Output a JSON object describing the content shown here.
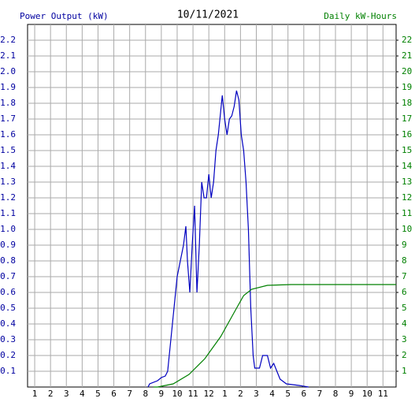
{
  "chart_data": {
    "type": "line",
    "title": "10/11/2021",
    "ylabel": "Power Output (kW)",
    "y2label": "Daily kW-Hours",
    "ylabel_color": "#0000a0",
    "y2label_color": "#008000",
    "xlim": [
      0.55,
      23.83
    ],
    "xticks": [
      {
        "value": 1,
        "label": "1"
      },
      {
        "value": 2,
        "label": "2"
      },
      {
        "value": 3,
        "label": "3"
      },
      {
        "value": 4,
        "label": "4"
      },
      {
        "value": 5,
        "label": "5"
      },
      {
        "value": 6,
        "label": "6"
      },
      {
        "value": 7,
        "label": "7"
      },
      {
        "value": 8,
        "label": "8"
      },
      {
        "value": 9,
        "label": "9"
      },
      {
        "value": 10,
        "label": "10"
      },
      {
        "value": 11,
        "label": "11"
      },
      {
        "value": 12,
        "label": "12"
      },
      {
        "value": 13,
        "label": "1"
      },
      {
        "value": 14,
        "label": "2"
      },
      {
        "value": 15,
        "label": "3"
      },
      {
        "value": 16,
        "label": "4"
      },
      {
        "value": 17,
        "label": "5"
      },
      {
        "value": 18,
        "label": "6"
      },
      {
        "value": 19,
        "label": "7"
      },
      {
        "value": 20,
        "label": "8"
      },
      {
        "value": 21,
        "label": "9"
      },
      {
        "value": 22,
        "label": "10"
      },
      {
        "value": 23,
        "label": "11"
      }
    ],
    "ylim": [
      0,
      2.3
    ],
    "yticks": [
      0.1,
      0.2,
      0.3,
      0.4,
      0.5,
      0.6,
      0.7,
      0.8,
      0.9,
      {
        "value": 1,
        "label": "1.0"
      },
      1.1,
      1.2,
      1.3,
      1.4,
      1.5,
      1.6,
      1.7,
      1.8,
      1.9,
      {
        "value": 2,
        "label": "2.0"
      },
      2.1,
      2.2
    ],
    "y2lim": [
      0,
      23
    ],
    "y2ticks": [
      1,
      2,
      3,
      4,
      5,
      6,
      7,
      8,
      9,
      10,
      11,
      12,
      13,
      14,
      15,
      16,
      17,
      18,
      19,
      20,
      21,
      22
    ],
    "grid": true,
    "series": [
      {
        "color": "#0000c0",
        "axis": "y",
        "x": [
          8.16,
          8.26,
          8.76,
          9.0,
          9.25,
          9.4,
          9.55,
          9.75,
          10.0,
          10.2,
          10.4,
          10.55,
          10.65,
          10.8,
          10.95,
          11.1,
          11.25,
          11.4,
          11.55,
          11.7,
          11.85,
          12.0,
          12.15,
          12.3,
          12.45,
          12.6,
          12.75,
          12.85,
          13.0,
          13.15,
          13.3,
          13.45,
          13.6,
          13.75,
          13.9,
          14.05,
          14.2,
          14.35,
          14.5,
          14.65,
          14.8,
          14.9,
          15.2,
          15.4,
          15.7,
          15.9,
          16.1,
          16.3,
          16.5,
          16.9,
          17.7,
          18.3
        ],
        "values": [
          0,
          0.02,
          0.04,
          0.06,
          0.07,
          0.1,
          0.25,
          0.45,
          0.7,
          0.8,
          0.9,
          1.02,
          0.8,
          0.6,
          0.9,
          1.15,
          0.6,
          0.9,
          1.3,
          1.2,
          1.2,
          1.35,
          1.2,
          1.3,
          1.5,
          1.6,
          1.75,
          1.85,
          1.7,
          1.6,
          1.7,
          1.72,
          1.78,
          1.88,
          1.82,
          1.6,
          1.5,
          1.3,
          1.0,
          0.5,
          0.2,
          0.12,
          0.12,
          0.2,
          0.2,
          0.12,
          0.15,
          0.1,
          0.05,
          0.02,
          0.01,
          0
        ]
      },
      {
        "color": "#008000",
        "axis": "y2",
        "x": [
          8.5,
          8.76,
          9.75,
          10.75,
          11.75,
          12.75,
          13.75,
          14.2,
          14.7,
          15.7,
          17.2,
          23.83
        ],
        "values": [
          0,
          0,
          0.2,
          0.8,
          1.8,
          3.2,
          5.0,
          5.8,
          6.2,
          6.45,
          6.5,
          6.5
        ]
      }
    ]
  }
}
